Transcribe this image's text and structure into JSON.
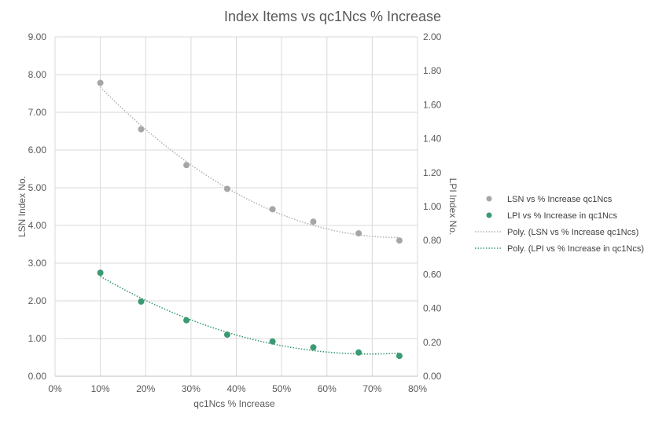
{
  "chart_data": {
    "type": "scatter",
    "title": "Index Items vs qc1Ncs % Increase",
    "xlabel": "qc1Ncs % Increase",
    "ylabel": "LSN Index No.",
    "y2label": "LPI Index No.",
    "xlim": [
      0,
      80
    ],
    "ylim": [
      0,
      9
    ],
    "y2lim": [
      0,
      2
    ],
    "x_ticks": [
      "0%",
      "10%",
      "20%",
      "30%",
      "40%",
      "50%",
      "60%",
      "70%",
      "80%"
    ],
    "y_ticks": [
      "0.00",
      "1.00",
      "2.00",
      "3.00",
      "4.00",
      "5.00",
      "6.00",
      "7.00",
      "8.00",
      "9.00"
    ],
    "y2_ticks": [
      "0.00",
      "0.20",
      "0.40",
      "0.60",
      "0.80",
      "1.00",
      "1.20",
      "1.40",
      "1.60",
      "1.80",
      "2.00"
    ],
    "grid": true,
    "legend_position": "right",
    "series": [
      {
        "name": "LSN vs % Increase qc1Ncs",
        "axis": "left",
        "color": "#a6a6a6",
        "x": [
          10,
          19,
          29,
          38,
          48,
          57,
          67,
          76
        ],
        "y": [
          7.78,
          6.55,
          5.6,
          4.97,
          4.43,
          4.1,
          3.79,
          3.6
        ]
      },
      {
        "name": "LPI vs % Increase in qc1Ncs",
        "axis": "right",
        "color": "#3a9a72",
        "x": [
          10,
          19,
          29,
          38,
          48,
          57,
          67,
          76
        ],
        "y": [
          0.61,
          0.44,
          0.33,
          0.245,
          0.205,
          0.17,
          0.14,
          0.12
        ]
      }
    ],
    "trendlines": [
      {
        "name": "Poly. (LSN vs % Increase qc1Ncs)",
        "of_series": 0,
        "color": "#b4b4b4"
      },
      {
        "name": "Poly. (LPI vs % Increase in qc1Ncs)",
        "of_series": 1,
        "color": "#3a9a72"
      }
    ]
  }
}
